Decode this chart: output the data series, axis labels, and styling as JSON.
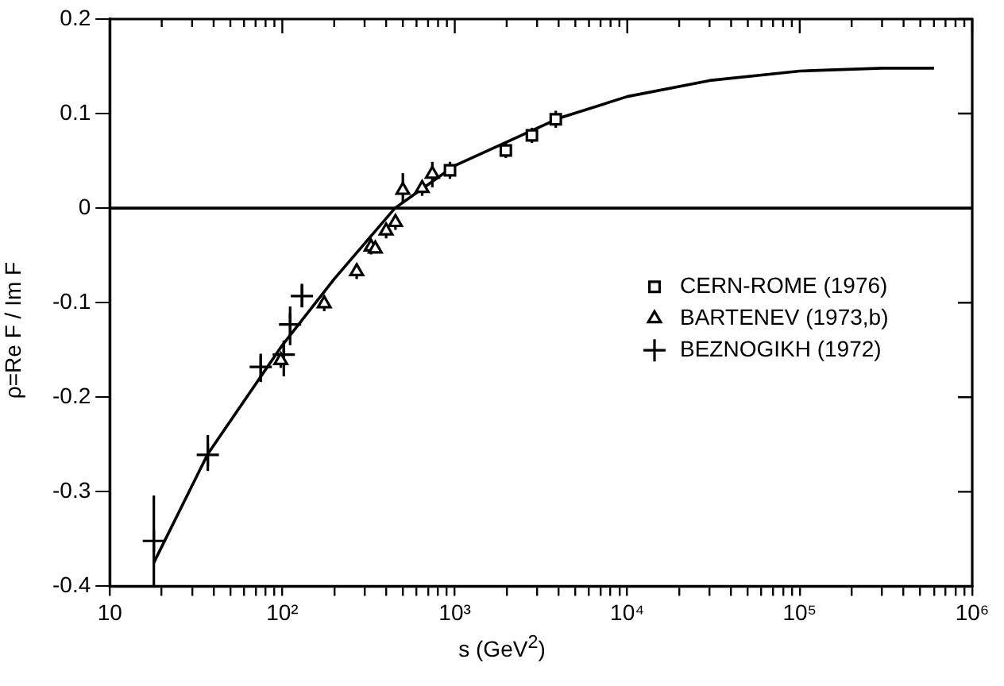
{
  "chart_data": {
    "type": "scatter",
    "xlabel": "s (GeV$^{2}$)",
    "ylabel": "ρ=Re F / Im F",
    "log": "x",
    "xlim": [
      10,
      1000000
    ],
    "xticks": [
      {
        "value": 10,
        "label": "10"
      },
      {
        "value": 20,
        "label": null
      },
      {
        "value": 30,
        "label": null
      },
      {
        "value": 40,
        "label": null
      },
      {
        "value": 50,
        "label": null
      },
      {
        "value": 60,
        "label": null
      },
      {
        "value": 70,
        "label": null
      },
      {
        "value": 80,
        "label": null
      },
      {
        "value": 90,
        "label": null
      },
      {
        "value": 100,
        "label": "10²"
      },
      {
        "value": 200,
        "label": null
      },
      {
        "value": 300,
        "label": null
      },
      {
        "value": 400,
        "label": null
      },
      {
        "value": 500,
        "label": null
      },
      {
        "value": 600,
        "label": null
      },
      {
        "value": 700,
        "label": null
      },
      {
        "value": 800,
        "label": null
      },
      {
        "value": 900,
        "label": null
      },
      {
        "value": 1000,
        "label": "10³"
      },
      {
        "value": 2000,
        "label": null
      },
      {
        "value": 3000,
        "label": null
      },
      {
        "value": 4000,
        "label": null
      },
      {
        "value": 5000,
        "label": null
      },
      {
        "value": 6000,
        "label": null
      },
      {
        "value": 7000,
        "label": null
      },
      {
        "value": 8000,
        "label": null
      },
      {
        "value": 9000,
        "label": null
      },
      {
        "value": 10000,
        "label": "10⁴"
      },
      {
        "value": 20000,
        "label": null
      },
      {
        "value": 30000,
        "label": null
      },
      {
        "value": 40000,
        "label": null
      },
      {
        "value": 50000,
        "label": null
      },
      {
        "value": 60000,
        "label": null
      },
      {
        "value": 70000,
        "label": null
      },
      {
        "value": 80000,
        "label": null
      },
      {
        "value": 90000,
        "label": null
      },
      {
        "value": 100000,
        "label": "10⁵"
      },
      {
        "value": 200000,
        "label": null
      },
      {
        "value": 300000,
        "label": null
      },
      {
        "value": 400000,
        "label": null
      },
      {
        "value": 500000,
        "label": null
      },
      {
        "value": 600000,
        "label": null
      },
      {
        "value": 700000,
        "label": null
      },
      {
        "value": 800000,
        "label": null
      },
      {
        "value": 900000,
        "label": null
      },
      {
        "value": 1000000,
        "label": "10⁶"
      }
    ],
    "ylim": [
      -0.4,
      0.2
    ],
    "yticks": [
      0.2,
      0.1,
      0,
      -0.1,
      -0.2,
      -0.3,
      -0.4
    ],
    "grid": false,
    "legend": "right",
    "line_style": "solid",
    "ref_lines": [
      {
        "axis": "y",
        "value": 0,
        "label": null,
        "color": "#000000"
      }
    ],
    "series": [
      {
        "name": "CERN-ROME (1976)",
        "color": "#000000",
        "marker": "square",
        "x": [
          938,
          1977,
          2800,
          3850
        ],
        "values": [
          0.04,
          0.061,
          0.077,
          0.094
        ],
        "errors": [
          0.009,
          0.008,
          0.008,
          0.009
        ]
      },
      {
        "name": "BARTENEV (1973,b)",
        "color": "#000000",
        "marker": "triangle",
        "x": [
          98,
          175,
          270,
          327,
          346,
          400,
          453,
          500,
          647,
          741
        ],
        "values": [
          -0.161,
          -0.101,
          -0.067,
          -0.041,
          -0.043,
          -0.024,
          -0.015,
          0.019,
          0.021,
          0.036
        ],
        "errors": [
          0.008,
          0.008,
          0.008,
          0.008,
          null,
          0.008,
          0.008,
          [
            0.006,
            0.037
          ],
          0.008,
          [
            0.022,
            0.049
          ]
        ]
      },
      {
        "name": "BEZNOGIKH (1972)",
        "color": "#000000",
        "marker": "cross",
        "x": [
          18,
          37,
          75,
          102,
          111,
          130
        ],
        "values": [
          -0.352,
          -0.261,
          -0.168,
          -0.155,
          -0.123,
          -0.093
        ],
        "errors": [
          [
            -0.4,
            -0.304
          ],
          [
            -0.278,
            -0.24
          ],
          [
            -0.184,
            -0.154
          ],
          [
            -0.178,
            -0.14
          ],
          [
            -0.145,
            -0.104
          ],
          [
            -0.105,
            -0.08
          ]
        ]
      },
      {
        "type": "line",
        "color": "#000000",
        "marker": "none",
        "x": [
          18,
          37,
          100,
          200,
          450,
          1000,
          2000,
          4000,
          10000,
          30000,
          100000,
          300000,
          600000
        ],
        "values": [
          -0.375,
          -0.26,
          -0.145,
          -0.075,
          0.0,
          0.045,
          0.07,
          0.095,
          0.118,
          0.135,
          0.145,
          0.148,
          0.148
        ]
      }
    ]
  }
}
